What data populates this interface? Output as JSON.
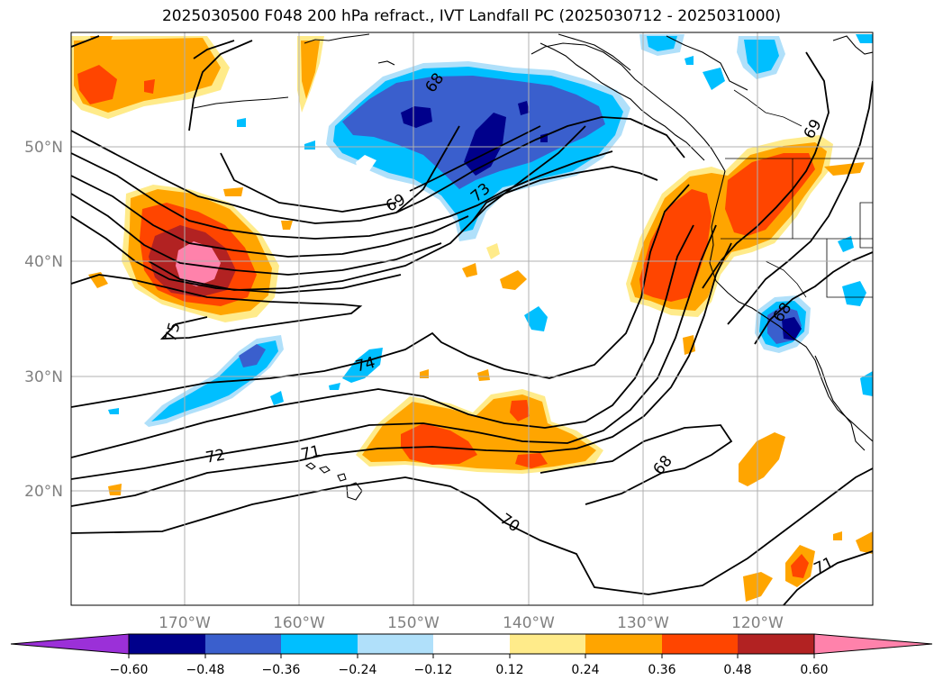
{
  "title": "2025030500 F048 200 hPa refract., IVT Landfall PC (2025030712 - 2025031000)",
  "lon_labels": [
    "170°W",
    "160°W",
    "150°W",
    "140°W",
    "130°W",
    "120°W"
  ],
  "lat_labels": [
    "50°N",
    "40°N",
    "30°N",
    "20°N"
  ],
  "colorbar": {
    "colors": [
      "#9b30d8",
      "#00008b",
      "#3a5fcd",
      "#00bfff",
      "#b0e0fa",
      "#ffffff",
      "#ffeb8a",
      "#ffa500",
      "#ff4500",
      "#b22222",
      "#ff82ab"
    ],
    "tick_labels": [
      "−0.60",
      "−0.48",
      "−0.36",
      "−0.24",
      "−0.12",
      "0.12",
      "0.24",
      "0.36",
      "0.48",
      "0.60"
    ]
  },
  "contour_labels": [
    "68",
    "69",
    "73",
    "75",
    "74",
    "72",
    "71",
    "70",
    "68",
    "71",
    "69",
    "68"
  ],
  "colors": {
    "land_outline": "#000000",
    "grid": "#b0b0b0",
    "contour": "#000000"
  }
}
